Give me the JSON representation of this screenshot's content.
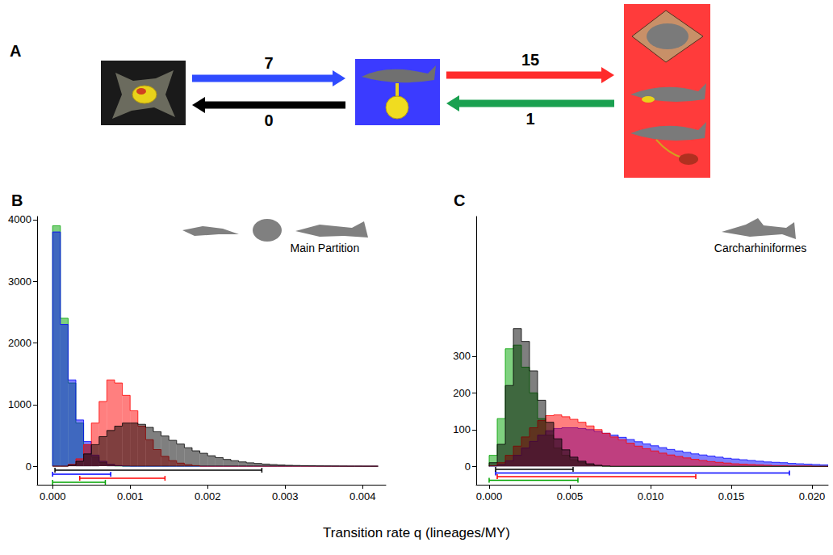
{
  "panel_a": {
    "letter": "A",
    "nodes": [
      {
        "color": "#1a1a1a"
      },
      {
        "color": "#3b3bff"
      },
      {
        "color": "#ff3b3b"
      }
    ],
    "edges": [
      {
        "from": 0,
        "to": 1,
        "value": 7,
        "color": "#2f4bff"
      },
      {
        "from": 1,
        "to": 0,
        "value": 0,
        "color": "#000000"
      },
      {
        "from": 1,
        "to": 2,
        "value": 15,
        "color": "#ff2a2a"
      },
      {
        "from": 2,
        "to": 1,
        "value": 1,
        "color": "#1aa050"
      }
    ]
  },
  "x_label": "Transition rate q (lineages/MY)",
  "chart_data": [
    {
      "type": "histogram",
      "letter": "B",
      "annotation": "Main Partition",
      "grid": false,
      "xlim": [
        -0.0002,
        0.0043
      ],
      "xticks": [
        {
          "value": 0,
          "label": "0.000"
        },
        {
          "value": 0.001,
          "label": "0.001"
        },
        {
          "value": 0.002,
          "label": "0.002"
        },
        {
          "value": 0.003,
          "label": "0.003"
        },
        {
          "value": 0.004,
          "label": "0.004"
        }
      ],
      "ylim": [
        -300,
        4050
      ],
      "yticks": [
        0,
        1000,
        2000,
        3000,
        4000
      ],
      "bins": [
        0,
        0.0001,
        0.0002,
        0.0003,
        0.0004,
        0.0005,
        0.0006,
        0.0007,
        0.0008,
        0.0009,
        0.001,
        0.0011,
        0.0012,
        0.0013,
        0.0014,
        0.0015,
        0.0016,
        0.0017,
        0.0018,
        0.0019,
        0.002,
        0.0021,
        0.0022,
        0.0023,
        0.0024,
        0.0025,
        0.0026,
        0.0027,
        0.0028,
        0.0029,
        0.003,
        0.0031,
        0.0032,
        0.0033,
        0.0034,
        0.0035,
        0.0036,
        0.0037,
        0.0038,
        0.0039,
        0.004,
        0.0041,
        0.0042
      ],
      "series": [
        {
          "color": "#00a300",
          "values": [
            3900,
            2400,
            1350,
            700,
            350,
            150,
            60,
            20,
            5,
            0,
            0,
            0,
            0,
            0,
            0,
            0,
            0,
            0,
            0,
            0,
            0,
            0,
            0,
            0,
            0,
            0,
            0,
            0,
            0,
            0,
            0,
            0,
            0,
            0,
            0,
            0,
            0,
            0,
            0,
            0,
            0,
            0
          ],
          "interval": {
            "low": 0,
            "high": 0.00068,
            "y": -260
          }
        },
        {
          "color": "#0000ff",
          "values": [
            3800,
            2300,
            1400,
            750,
            400,
            180,
            80,
            30,
            10,
            3,
            0,
            0,
            0,
            0,
            0,
            0,
            0,
            0,
            0,
            0,
            0,
            0,
            0,
            0,
            0,
            0,
            0,
            0,
            0,
            0,
            0,
            0,
            0,
            0,
            0,
            0,
            0,
            0,
            0,
            0,
            0,
            0
          ],
          "interval": {
            "low": 0,
            "high": 0.00075,
            "y": -130
          }
        },
        {
          "color": "#ff0000",
          "values": [
            0,
            0,
            30,
            120,
            350,
            700,
            1050,
            1400,
            1350,
            1150,
            900,
            650,
            430,
            270,
            160,
            90,
            50,
            25,
            10,
            0,
            0,
            0,
            0,
            0,
            0,
            0,
            0,
            0,
            0,
            0,
            0,
            0,
            0,
            0,
            0,
            0,
            0,
            0,
            0,
            0,
            0,
            0
          ],
          "interval": {
            "low": 0.00035,
            "high": 0.00145,
            "y": -195
          }
        },
        {
          "color": "#000000",
          "values": [
            0,
            0,
            20,
            80,
            200,
            350,
            480,
            580,
            650,
            700,
            700,
            680,
            630,
            560,
            490,
            420,
            360,
            300,
            250,
            210,
            170,
            140,
            110,
            90,
            70,
            55,
            45,
            35,
            27,
            20,
            15,
            12,
            9,
            7,
            5,
            4,
            3,
            2,
            1,
            1,
            0,
            0
          ],
          "interval": {
            "low": 3e-05,
            "high": 0.0027,
            "y": -65
          }
        }
      ]
    },
    {
      "type": "histogram",
      "letter": "C",
      "annotation": "Carcharhiniformes",
      "grid": false,
      "xlim": [
        -0.0008,
        0.021
      ],
      "xticks": [
        {
          "value": 0,
          "label": "0.000"
        },
        {
          "value": 0.005,
          "label": "0.005"
        },
        {
          "value": 0.01,
          "label": "0.010"
        },
        {
          "value": 0.015,
          "label": "0.015"
        },
        {
          "value": 0.02,
          "label": "0.020"
        }
      ],
      "ylim": [
        -50,
        680
      ],
      "yticks": [
        0,
        100,
        200,
        300
      ],
      "bins": [
        0,
        0.0005,
        0.001,
        0.0015,
        0.002,
        0.0025,
        0.003,
        0.0035,
        0.004,
        0.0045,
        0.005,
        0.0055,
        0.006,
        0.0065,
        0.007,
        0.0075,
        0.008,
        0.0085,
        0.009,
        0.0095,
        0.01,
        0.0105,
        0.011,
        0.0115,
        0.012,
        0.0125,
        0.013,
        0.0135,
        0.014,
        0.0145,
        0.015,
        0.0155,
        0.016,
        0.0165,
        0.017,
        0.0175,
        0.018,
        0.0185,
        0.019,
        0.0195,
        0.02,
        0.0205,
        0.021
      ],
      "series": [
        {
          "color": "#00a300",
          "values": [
            30,
            130,
            320,
            330,
            270,
            200,
            130,
            85,
            50,
            30,
            18,
            10,
            5,
            2,
            0,
            0,
            0,
            0,
            0,
            0,
            0,
            0,
            0,
            0,
            0,
            0,
            0,
            0,
            0,
            0,
            0,
            0,
            0,
            0,
            0,
            0,
            0,
            0,
            0,
            0,
            0,
            0
          ],
          "interval": {
            "low": 0,
            "high": 0.0055,
            "y": -38
          }
        },
        {
          "color": "#0000ff",
          "values": [
            1,
            5,
            15,
            30,
            50,
            68,
            85,
            97,
            103,
            105,
            105,
            103,
            100,
            95,
            90,
            85,
            79,
            73,
            67,
            61,
            56,
            51,
            46,
            42,
            38,
            34,
            31,
            28,
            25,
            22,
            20,
            18,
            16,
            14,
            12,
            11,
            10,
            8,
            7,
            6,
            5,
            4
          ],
          "interval": {
            "low": 0.0004,
            "high": 0.0186,
            "y": -18
          }
        },
        {
          "color": "#ff0000",
          "values": [
            2,
            10,
            30,
            55,
            80,
            105,
            125,
            138,
            140,
            135,
            128,
            120,
            110,
            100,
            90,
            80,
            72,
            63,
            55,
            48,
            42,
            36,
            31,
            27,
            23,
            19,
            16,
            13,
            11,
            9,
            7,
            6,
            5,
            4,
            3,
            2,
            2,
            1,
            1,
            1,
            0,
            0
          ],
          "interval": {
            "low": 0.0005,
            "high": 0.0128,
            "y": -28
          }
        },
        {
          "color": "#000000",
          "values": [
            10,
            60,
            220,
            375,
            340,
            260,
            180,
            120,
            75,
            45,
            25,
            14,
            7,
            3,
            1,
            0,
            0,
            0,
            0,
            0,
            0,
            0,
            0,
            0,
            0,
            0,
            0,
            0,
            0,
            0,
            0,
            0,
            0,
            0,
            0,
            0,
            0,
            0,
            0,
            0,
            0,
            0
          ],
          "interval": {
            "low": 0.0004,
            "high": 0.0052,
            "y": -8
          }
        }
      ]
    }
  ]
}
